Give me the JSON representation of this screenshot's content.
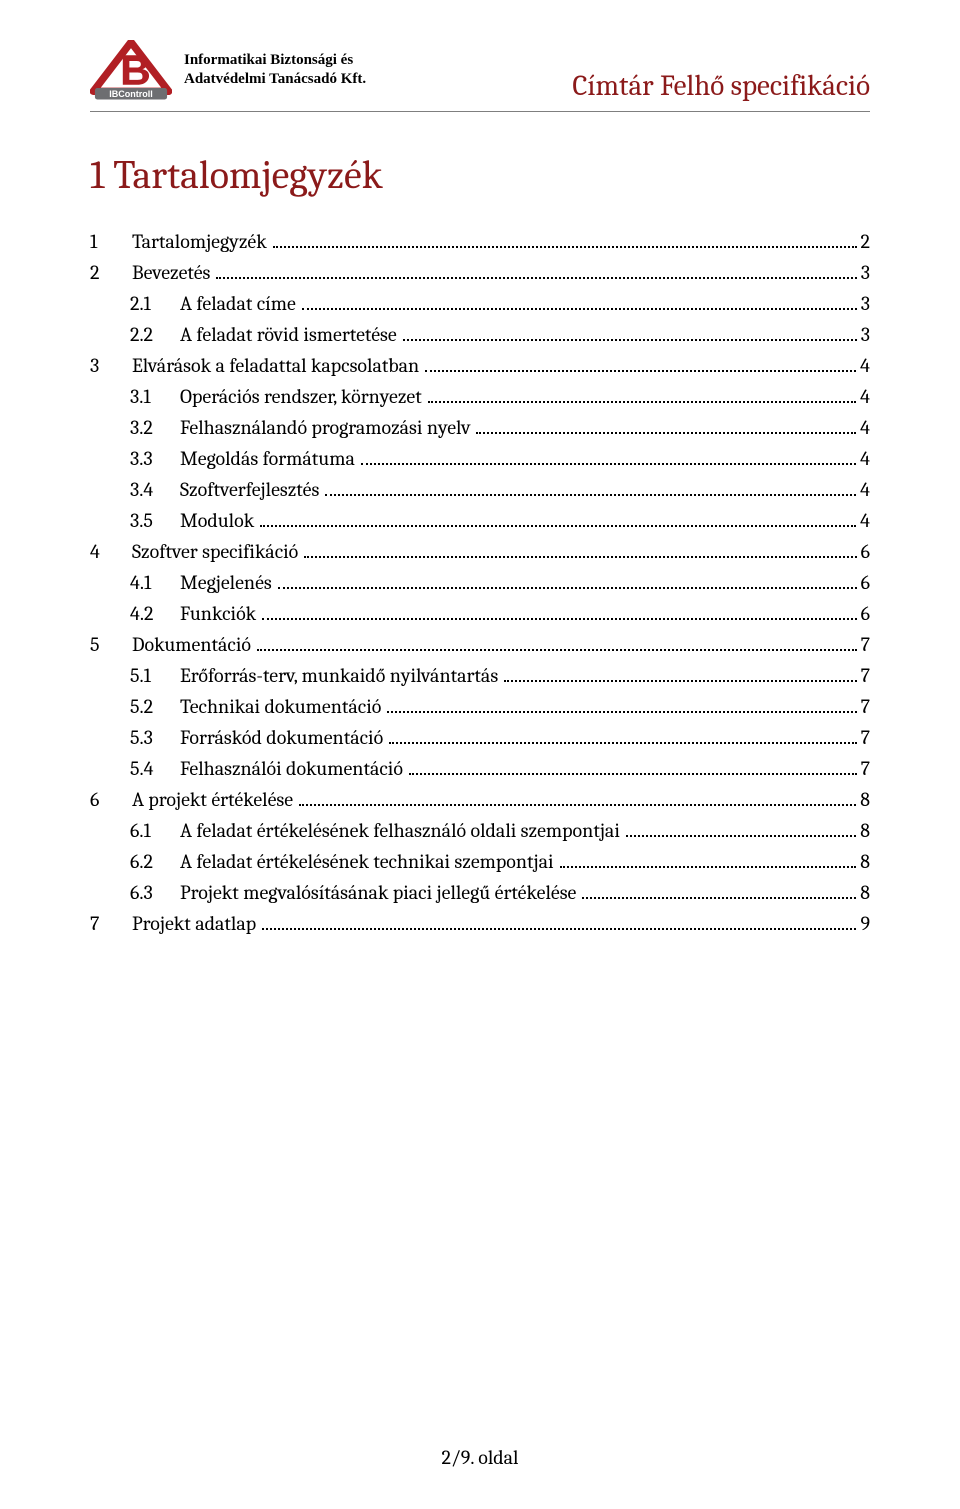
{
  "colors": {
    "accent": "#8b1a1a",
    "text": "#000000",
    "rule": "#7f7f7f",
    "background": "#ffffff",
    "logo_red": "#b11f24",
    "logo_grey": "#6d6e71"
  },
  "typography": {
    "body_family": "Cambria, Georgia, serif",
    "title_fontsize_pt": 30,
    "toc_fontsize_pt": 15,
    "header_right_fontsize_pt": 22
  },
  "header": {
    "company_line1": "Informatikai Biztonsági és",
    "company_line2": "Adatvédelmi Tanácsadó Kft.",
    "logo_caption": "IBControll",
    "doc_title": "Címtár Felhő specifikáció"
  },
  "title": {
    "number": "1",
    "text": "Tartalomjegyzék"
  },
  "toc": [
    {
      "level": 1,
      "num": "1",
      "label": "Tartalomjegyzék",
      "page": "2"
    },
    {
      "level": 1,
      "num": "2",
      "label": "Bevezetés",
      "page": "3"
    },
    {
      "level": 2,
      "num": "2.1",
      "label": "A feladat címe",
      "page": "3"
    },
    {
      "level": 2,
      "num": "2.2",
      "label": "A feladat rövid ismertetése",
      "page": "3"
    },
    {
      "level": 1,
      "num": "3",
      "label": "Elvárások a feladattal kapcsolatban",
      "page": "4"
    },
    {
      "level": 2,
      "num": "3.1",
      "label": "Operációs rendszer, környezet",
      "page": "4"
    },
    {
      "level": 2,
      "num": "3.2",
      "label": "Felhasználandó programozási nyelv",
      "page": "4"
    },
    {
      "level": 2,
      "num": "3.3",
      "label": "Megoldás formátuma",
      "page": "4"
    },
    {
      "level": 2,
      "num": "3.4",
      "label": "Szoftverfejlesztés",
      "page": "4"
    },
    {
      "level": 2,
      "num": "3.5",
      "label": "Modulok",
      "page": "4"
    },
    {
      "level": 1,
      "num": "4",
      "label": "Szoftver specifikáció",
      "page": "6"
    },
    {
      "level": 2,
      "num": "4.1",
      "label": "Megjelenés",
      "page": "6"
    },
    {
      "level": 2,
      "num": "4.2",
      "label": "Funkciók",
      "page": "6"
    },
    {
      "level": 1,
      "num": "5",
      "label": "Dokumentáció",
      "page": "7"
    },
    {
      "level": 2,
      "num": "5.1",
      "label": "Erőforrás-terv, munkaidő nyilvántartás",
      "page": "7"
    },
    {
      "level": 2,
      "num": "5.2",
      "label": "Technikai dokumentáció",
      "page": "7"
    },
    {
      "level": 2,
      "num": "5.3",
      "label": "Forráskód dokumentáció",
      "page": "7"
    },
    {
      "level": 2,
      "num": "5.4",
      "label": "Felhasználói dokumentáció",
      "page": "7"
    },
    {
      "level": 1,
      "num": "6",
      "label": "A projekt értékelése",
      "page": "8"
    },
    {
      "level": 2,
      "num": "6.1",
      "label": "A feladat értékelésének felhasználó oldali szempontjai",
      "page": "8"
    },
    {
      "level": 2,
      "num": "6.2",
      "label": "A feladat értékelésének technikai szempontjai",
      "page": "8"
    },
    {
      "level": 2,
      "num": "6.3",
      "label": "Projekt megvalósításának piaci jellegű értékelése",
      "page": "8"
    },
    {
      "level": 1,
      "num": "7",
      "label": "Projekt adatlap",
      "page": "9"
    }
  ],
  "footer": {
    "text": "2/9. oldal"
  }
}
